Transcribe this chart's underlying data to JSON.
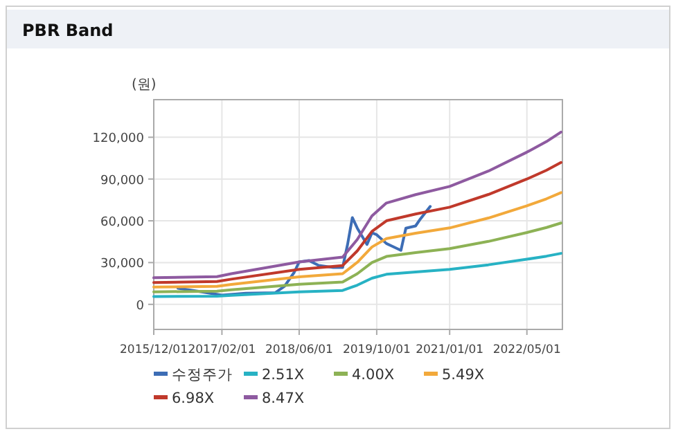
{
  "chart_data": {
    "type": "line",
    "title": "PBR Band",
    "ylabel": "(원)",
    "x": [
      "2015-12",
      "2017-01",
      "2017-04",
      "2018-06",
      "2019-03",
      "2019-06",
      "2019-09",
      "2019-12",
      "2020-06",
      "2021-01",
      "2021-09",
      "2022-05",
      "2022-09",
      "2022-12"
    ],
    "series": [
      {
        "name": "수정주가",
        "color": "#3d6db5",
        "x": [
          "2016-05",
          "2016-09",
          "2017-02",
          "2017-07",
          "2018-01",
          "2018-03",
          "2018-05",
          "2018-06",
          "2018-08",
          "2018-10",
          "2019-01",
          "2019-03",
          "2019-04",
          "2019-05",
          "2019-06",
          "2019-08",
          "2019-09",
          "2019-10",
          "2019-12",
          "2020-01",
          "2020-03",
          "2020-04",
          "2020-06",
          "2020-07",
          "2020-09"
        ],
        "values": [
          11600,
          9500,
          6600,
          8000,
          8300,
          13000,
          23000,
          30500,
          31500,
          28000,
          26500,
          26500,
          43000,
          62300,
          54700,
          43000,
          51400,
          50000,
          43700,
          42000,
          38800,
          54700,
          56300,
          61300,
          70300
        ]
      },
      {
        "name": "2.51X",
        "color": "#27b2c4",
        "values": [
          5600,
          5900,
          6500,
          9000,
          10000,
          13800,
          18800,
          21600,
          23300,
          25100,
          28400,
          32400,
          34600,
          36600
        ]
      },
      {
        "name": "4.00X",
        "color": "#8db255",
        "values": [
          9000,
          9400,
          10400,
          14400,
          16000,
          22000,
          30000,
          34400,
          37200,
          40000,
          45200,
          51600,
          55200,
          58400
        ]
      },
      {
        "name": "5.49X",
        "color": "#f2a93b",
        "values": [
          12400,
          12900,
          14300,
          19800,
          22000,
          30200,
          41200,
          47200,
          51100,
          54900,
          62000,
          70800,
          75800,
          80200
        ]
      },
      {
        "name": "6.98X",
        "color": "#c0392b",
        "values": [
          15700,
          16400,
          18100,
          25100,
          27900,
          38400,
          52400,
          60000,
          64900,
          69800,
          78900,
          90000,
          96300,
          101900
        ]
      },
      {
        "name": "8.47X",
        "color": "#8e5aa0",
        "values": [
          19100,
          19900,
          22000,
          30500,
          33900,
          46600,
          63500,
          72800,
          78800,
          84700,
          95700,
          109300,
          116900,
          123700
        ]
      }
    ],
    "xlim": [
      "2015-12-01",
      "2022-12-10"
    ],
    "xticks": [
      {
        "value": "2015-12-01",
        "label": "2015/12/01"
      },
      {
        "value": "2017-02-01",
        "label": "2017/02/01"
      },
      {
        "value": "2018-06-01",
        "label": "2018/06/01"
      },
      {
        "value": "2019-10-01",
        "label": "2019/10/01"
      },
      {
        "value": "2021-01-01",
        "label": "2021/01/01"
      },
      {
        "value": "2022-05-01",
        "label": "2022/05/01"
      }
    ],
    "ylim": [
      -18000,
      147000
    ],
    "yticks": [
      0,
      {
        "value": 30000,
        "label": "30,000"
      },
      {
        "value": 60000,
        "label": "60,000"
      },
      {
        "value": 90000,
        "label": "90,000"
      },
      {
        "value": 120000,
        "label": "120,000"
      }
    ],
    "grid": true,
    "legend": "bottom"
  }
}
